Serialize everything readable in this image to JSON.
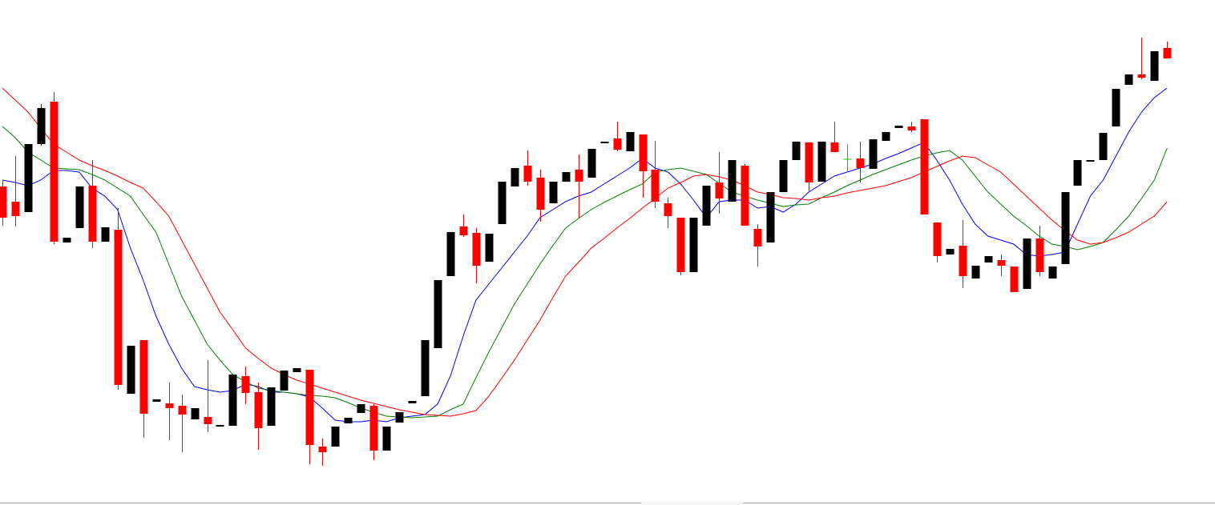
{
  "chart_data": {
    "type": "candlestick",
    "ylim": [
      -31,
      600
    ],
    "colors": {
      "up": "#000000",
      "down": "#ff0000",
      "doji": "#00cc00"
    },
    "open": [
      367,
      348,
      335,
      420,
      473,
      297,
      315,
      368,
      298,
      313,
      108,
      175,
      98,
      96,
      93,
      76,
      79,
      67,
      68,
      130,
      110,
      68,
      112,
      135,
      138,
      42,
      42,
      71,
      84,
      93,
      37,
      72,
      96,
      105,
      165,
      255,
      317,
      309,
      273,
      320,
      367,
      393,
      378,
      346,
      373,
      388,
      378,
      421,
      427,
      411,
      432,
      388,
      346,
      328,
      260,
      318,
      372,
      348,
      393,
      314,
      297,
      360,
      400,
      422,
      373,
      422,
      401,
      402,
      389,
      424,
      440,
      442,
      451,
      322,
      282,
      293,
      252,
      272,
      275,
      267,
      239,
      302,
      252,
      270,
      368,
      398,
      400,
      442,
      494,
      507,
      499,
      540
    ],
    "high": [
      375,
      405,
      420,
      470,
      485,
      303,
      367,
      400,
      316,
      340,
      168,
      175,
      101,
      122,
      107,
      90,
      150,
      69,
      132,
      142,
      122,
      116,
      137,
      140,
      138,
      52,
      67,
      78,
      95,
      95,
      67,
      85,
      99,
      175,
      250,
      310,
      332,
      315,
      308,
      373,
      390,
      412,
      388,
      373,
      385,
      407,
      414,
      423,
      448,
      435,
      432,
      424,
      353,
      328,
      328,
      368,
      410,
      400,
      395,
      320,
      360,
      400,
      423,
      422,
      423,
      448,
      420,
      423,
      426,
      435,
      443,
      448,
      451,
      322,
      289,
      325,
      268,
      280,
      282,
      267,
      302,
      318,
      267,
      360,
      400,
      400,
      434,
      489,
      507,
      553,
      536,
      548
    ],
    "low": [
      318,
      317,
      335,
      418,
      295,
      297,
      315,
      290,
      298,
      113,
      108,
      53,
      98,
      50,
      35,
      76,
      60,
      67,
      68,
      95,
      38,
      68,
      112,
      135,
      20,
      18,
      42,
      71,
      84,
      25,
      37,
      72,
      96,
      105,
      165,
      255,
      304,
      246,
      273,
      320,
      367,
      368,
      323,
      346,
      373,
      328,
      378,
      421,
      411,
      411,
      353,
      340,
      315,
      256,
      260,
      318,
      333,
      348,
      318,
      267,
      297,
      360,
      400,
      360,
      373,
      410,
      385,
      372,
      389,
      424,
      440,
      435,
      332,
      272,
      282,
      240,
      252,
      272,
      255,
      235,
      239,
      255,
      252,
      270,
      368,
      398,
      400,
      442,
      494,
      501,
      499,
      527
    ],
    "close": [
      328,
      330,
      420,
      465,
      298,
      303,
      367,
      298,
      316,
      119,
      168,
      83,
      101,
      90,
      82,
      90,
      70,
      69,
      132,
      109,
      65,
      116,
      137,
      140,
      44,
      35,
      67,
      78,
      95,
      37,
      67,
      85,
      99,
      175,
      250,
      310,
      306,
      268,
      308,
      373,
      390,
      373,
      338,
      373,
      385,
      373,
      414,
      423,
      413,
      435,
      386,
      348,
      330,
      260,
      328,
      368,
      352,
      400,
      318,
      292,
      360,
      400,
      423,
      372,
      423,
      410,
      401,
      390,
      426,
      435,
      443,
      437,
      332,
      280,
      289,
      255,
      268,
      280,
      268,
      235,
      302,
      260,
      267,
      360,
      400,
      400,
      434,
      489,
      507,
      503,
      536,
      527
    ],
    "series": [
      {
        "type": "line",
        "color": "#0000ff",
        "values": [
          375,
          372,
          368,
          375,
          387,
          387,
          385,
          365,
          355,
          338,
          290,
          250,
          205,
          170,
          140,
          117,
          113,
          110,
          112,
          120,
          117,
          110,
          110,
          108,
          104,
          90,
          75,
          73,
          73,
          75,
          73,
          78,
          80,
          82,
          95,
          130,
          180,
          225,
          245,
          265,
          285,
          305,
          328,
          338,
          348,
          355,
          360,
          370,
          380,
          390,
          402,
          390,
          385,
          370,
          350,
          328,
          348,
          350,
          350,
          340,
          342,
          335,
          345,
          360,
          370,
          380,
          385,
          390,
          395,
          402,
          408,
          415,
          422,
          400,
          375,
          345,
          320,
          305,
          300,
          295,
          282,
          280,
          282,
          285,
          320,
          355,
          375,
          405,
          435,
          460,
          478,
          490
        ]
      },
      {
        "type": "line",
        "color": "#008000",
        "values": [
          442,
          428,
          410,
          400,
          390,
          389,
          388,
          382,
          375,
          365,
          355,
          332,
          310,
          270,
          230,
          200,
          170,
          150,
          132,
          123,
          115,
          112,
          110,
          108,
          106,
          105,
          103,
          97,
          90,
          85,
          80,
          79,
          78,
          79,
          80,
          88,
          95,
          128,
          160,
          190,
          220,
          245,
          270,
          293,
          315,
          327,
          338,
          347,
          355,
          363,
          370,
          385,
          388,
          390,
          386,
          382,
          371,
          360,
          355,
          350,
          346,
          342,
          344,
          345,
          353,
          360,
          368,
          375,
          382,
          388,
          394,
          400,
          405,
          409,
          412,
          400,
          380,
          360,
          345,
          330,
          318,
          305,
          295,
          292,
          288,
          292,
          297,
          313,
          330,
          352,
          375,
          415
        ]
      },
      {
        "type": "line",
        "color": "#ff0000",
        "values": [
          490,
          475,
          460,
          440,
          420,
          410,
          400,
          393,
          387,
          380,
          372,
          365,
          348,
          330,
          300,
          270,
          240,
          210,
          188,
          165,
          152,
          140,
          132,
          125,
          120,
          115,
          110,
          105,
          100,
          96,
          92,
          88,
          85,
          82,
          81,
          80,
          83,
          87,
          105,
          127,
          150,
          175,
          200,
          228,
          255,
          272,
          290,
          302,
          315,
          327,
          340,
          352,
          365,
          372,
          380,
          382,
          379,
          375,
          368,
          360,
          357,
          353,
          352,
          350,
          353,
          355,
          359,
          362,
          365,
          368,
          373,
          378,
          385,
          392,
          399,
          405,
          403,
          394,
          385,
          370,
          355,
          340,
          325,
          312,
          300,
          295,
          297,
          303,
          310,
          320,
          330,
          348
        ]
      }
    ]
  }
}
